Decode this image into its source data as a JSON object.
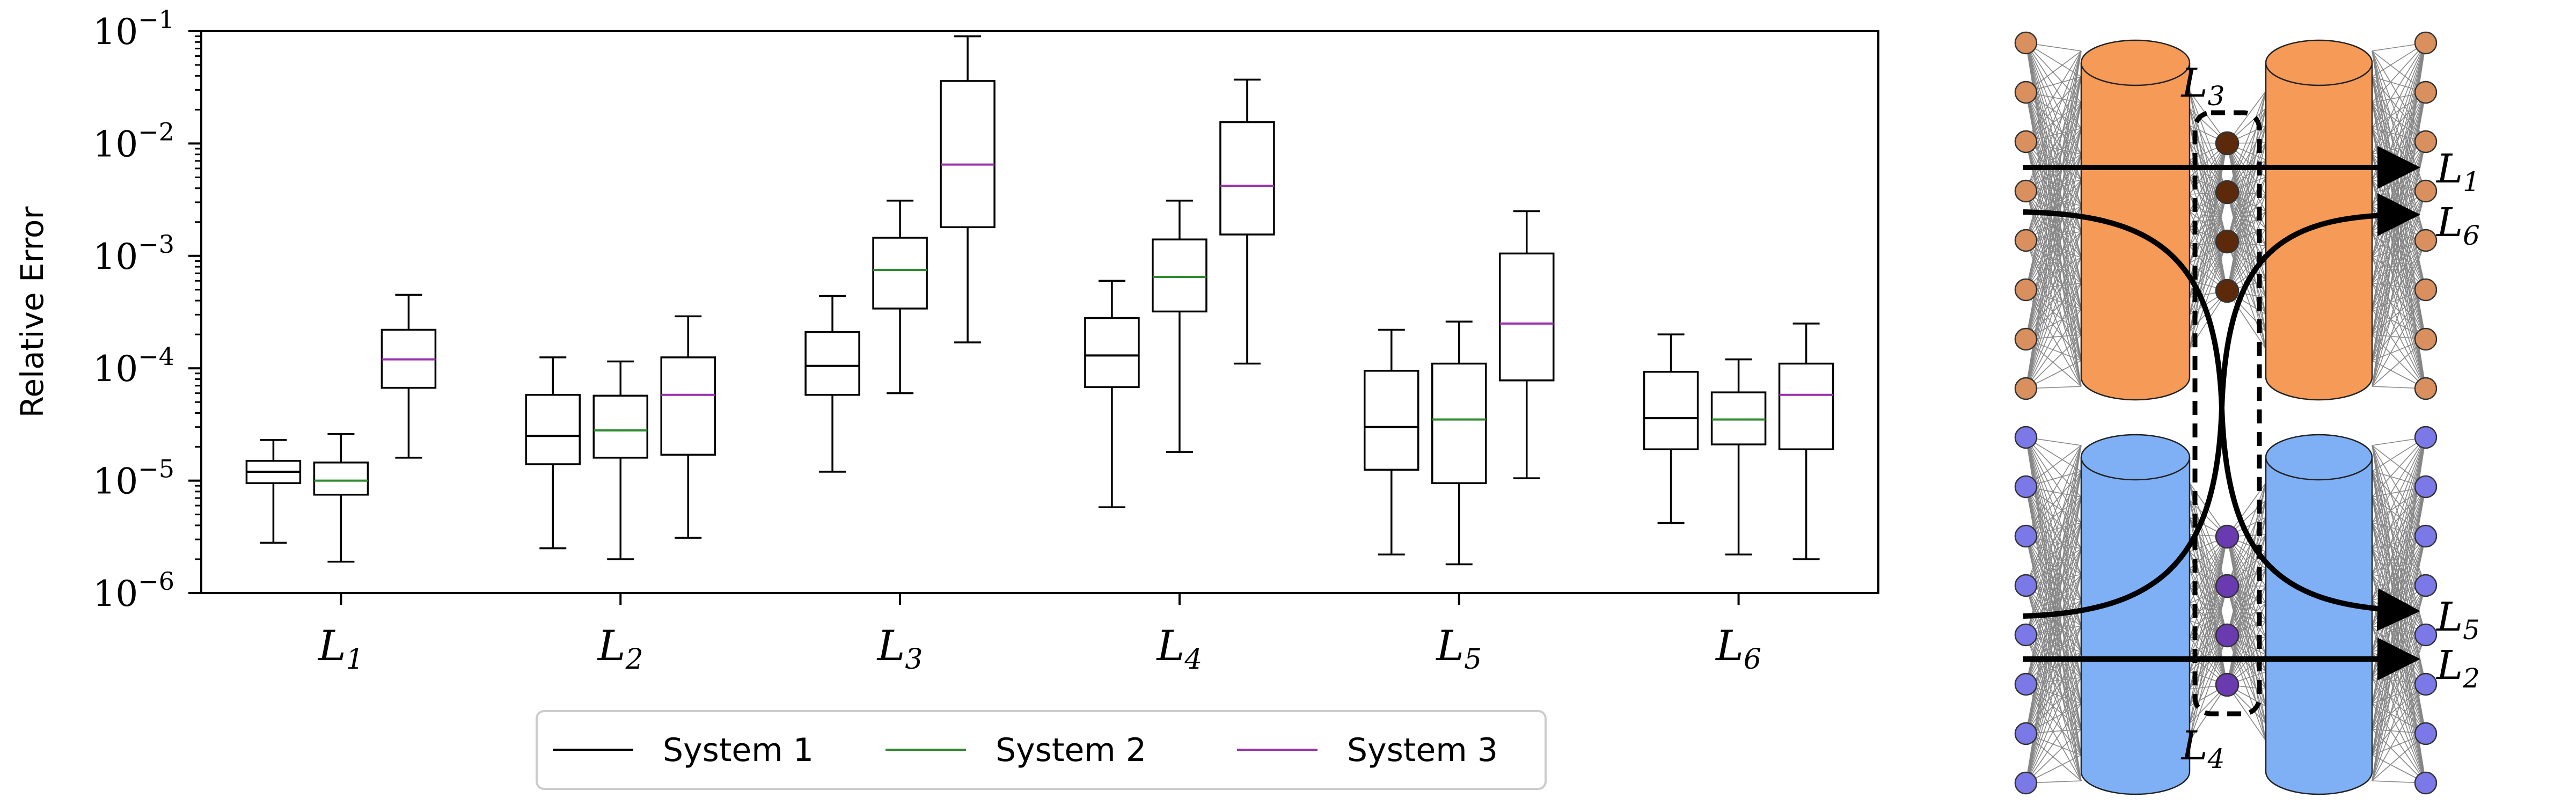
{
  "chart_data": {
    "type": "box",
    "ylabel": "Relative Error",
    "yscale": "log",
    "ylim": [
      1e-06,
      0.1
    ],
    "yticks": [
      {
        "value": 1e-06,
        "base": "10",
        "exp": "−6"
      },
      {
        "value": 1e-05,
        "base": "10",
        "exp": "−5"
      },
      {
        "value": 0.0001,
        "base": "10",
        "exp": "−4"
      },
      {
        "value": 0.001,
        "base": "10",
        "exp": "−3"
      },
      {
        "value": 0.01,
        "base": "10",
        "exp": "−2"
      },
      {
        "value": 0.1,
        "base": "10",
        "exp": "−1"
      }
    ],
    "categories": [
      {
        "symbol": "L",
        "sub": "1"
      },
      {
        "symbol": "L",
        "sub": "2"
      },
      {
        "symbol": "L",
        "sub": "3"
      },
      {
        "symbol": "L",
        "sub": "4"
      },
      {
        "symbol": "L",
        "sub": "5"
      },
      {
        "symbol": "L",
        "sub": "6"
      }
    ],
    "legend_position": "bottom",
    "series": [
      {
        "name": "System 1",
        "median_color": "#000000",
        "boxes": [
          {
            "wlo": 2.8e-06,
            "q1": 9.5e-06,
            "med": 1.2e-05,
            "q3": 1.5e-05,
            "whi": 2.3e-05
          },
          {
            "wlo": 2.5e-06,
            "q1": 1.4e-05,
            "med": 2.5e-05,
            "q3": 5.8e-05,
            "whi": 0.000125
          },
          {
            "wlo": 1.2e-05,
            "q1": 5.8e-05,
            "med": 0.000105,
            "q3": 0.00021,
            "whi": 0.00044
          },
          {
            "wlo": 5.8e-06,
            "q1": 6.8e-05,
            "med": 0.00013,
            "q3": 0.00028,
            "whi": 0.0006
          },
          {
            "wlo": 2.2e-06,
            "q1": 1.25e-05,
            "med": 3e-05,
            "q3": 9.5e-05,
            "whi": 0.00022
          },
          {
            "wlo": 4.2e-06,
            "q1": 1.9e-05,
            "med": 3.6e-05,
            "q3": 9.3e-05,
            "whi": 0.0002
          }
        ]
      },
      {
        "name": "System 2",
        "median_color": "#2e8b2e",
        "boxes": [
          {
            "wlo": 1.9e-06,
            "q1": 7.5e-06,
            "med": 1e-05,
            "q3": 1.45e-05,
            "whi": 2.6e-05
          },
          {
            "wlo": 2e-06,
            "q1": 1.6e-05,
            "med": 2.8e-05,
            "q3": 5.7e-05,
            "whi": 0.000115
          },
          {
            "wlo": 6e-05,
            "q1": 0.00034,
            "med": 0.00075,
            "q3": 0.00145,
            "whi": 0.0031
          },
          {
            "wlo": 1.8e-05,
            "q1": 0.00032,
            "med": 0.00065,
            "q3": 0.0014,
            "whi": 0.0031
          },
          {
            "wlo": 1.8e-06,
            "q1": 9.5e-06,
            "med": 3.5e-05,
            "q3": 0.00011,
            "whi": 0.00026
          },
          {
            "wlo": 2.2e-06,
            "q1": 2.1e-05,
            "med": 3.5e-05,
            "q3": 6.1e-05,
            "whi": 0.00012
          }
        ]
      },
      {
        "name": "System 3",
        "median_color": "#9933aa",
        "boxes": [
          {
            "wlo": 1.6e-05,
            "q1": 6.7e-05,
            "med": 0.00012,
            "q3": 0.00022,
            "whi": 0.00045
          },
          {
            "wlo": 3.1e-06,
            "q1": 1.7e-05,
            "med": 5.8e-05,
            "q3": 0.000125,
            "whi": 0.00029
          },
          {
            "wlo": 0.00017,
            "q1": 0.0018,
            "med": 0.0065,
            "q3": 0.036,
            "whi": 0.09
          },
          {
            "wlo": 0.00011,
            "q1": 0.00155,
            "med": 0.0042,
            "q3": 0.0155,
            "whi": 0.037
          },
          {
            "wlo": 1.05e-05,
            "q1": 7.8e-05,
            "med": 0.00025,
            "q3": 0.00105,
            "whi": 0.0025
          },
          {
            "wlo": 2e-06,
            "q1": 1.9e-05,
            "med": 5.8e-05,
            "q3": 0.00011,
            "whi": 0.00025
          }
        ]
      }
    ]
  },
  "diagram": {
    "labels": [
      {
        "key": "L3",
        "symbol": "L",
        "sub": "3"
      },
      {
        "key": "L1",
        "symbol": "L",
        "sub": "1"
      },
      {
        "key": "L6",
        "symbol": "L",
        "sub": "6"
      },
      {
        "key": "L5",
        "symbol": "L",
        "sub": "5"
      },
      {
        "key": "L2",
        "symbol": "L",
        "sub": "2"
      },
      {
        "key": "L4",
        "symbol": "L",
        "sub": "4"
      }
    ],
    "colors": {
      "top_block": "#f59a57",
      "top_node": "#d9905e",
      "top_latent": "#5c2a0a",
      "bottom_block": "#7fb0f5",
      "bottom_node": "#7b78e8",
      "bottom_latent": "#6a3ab0",
      "edges": "#555555"
    }
  }
}
